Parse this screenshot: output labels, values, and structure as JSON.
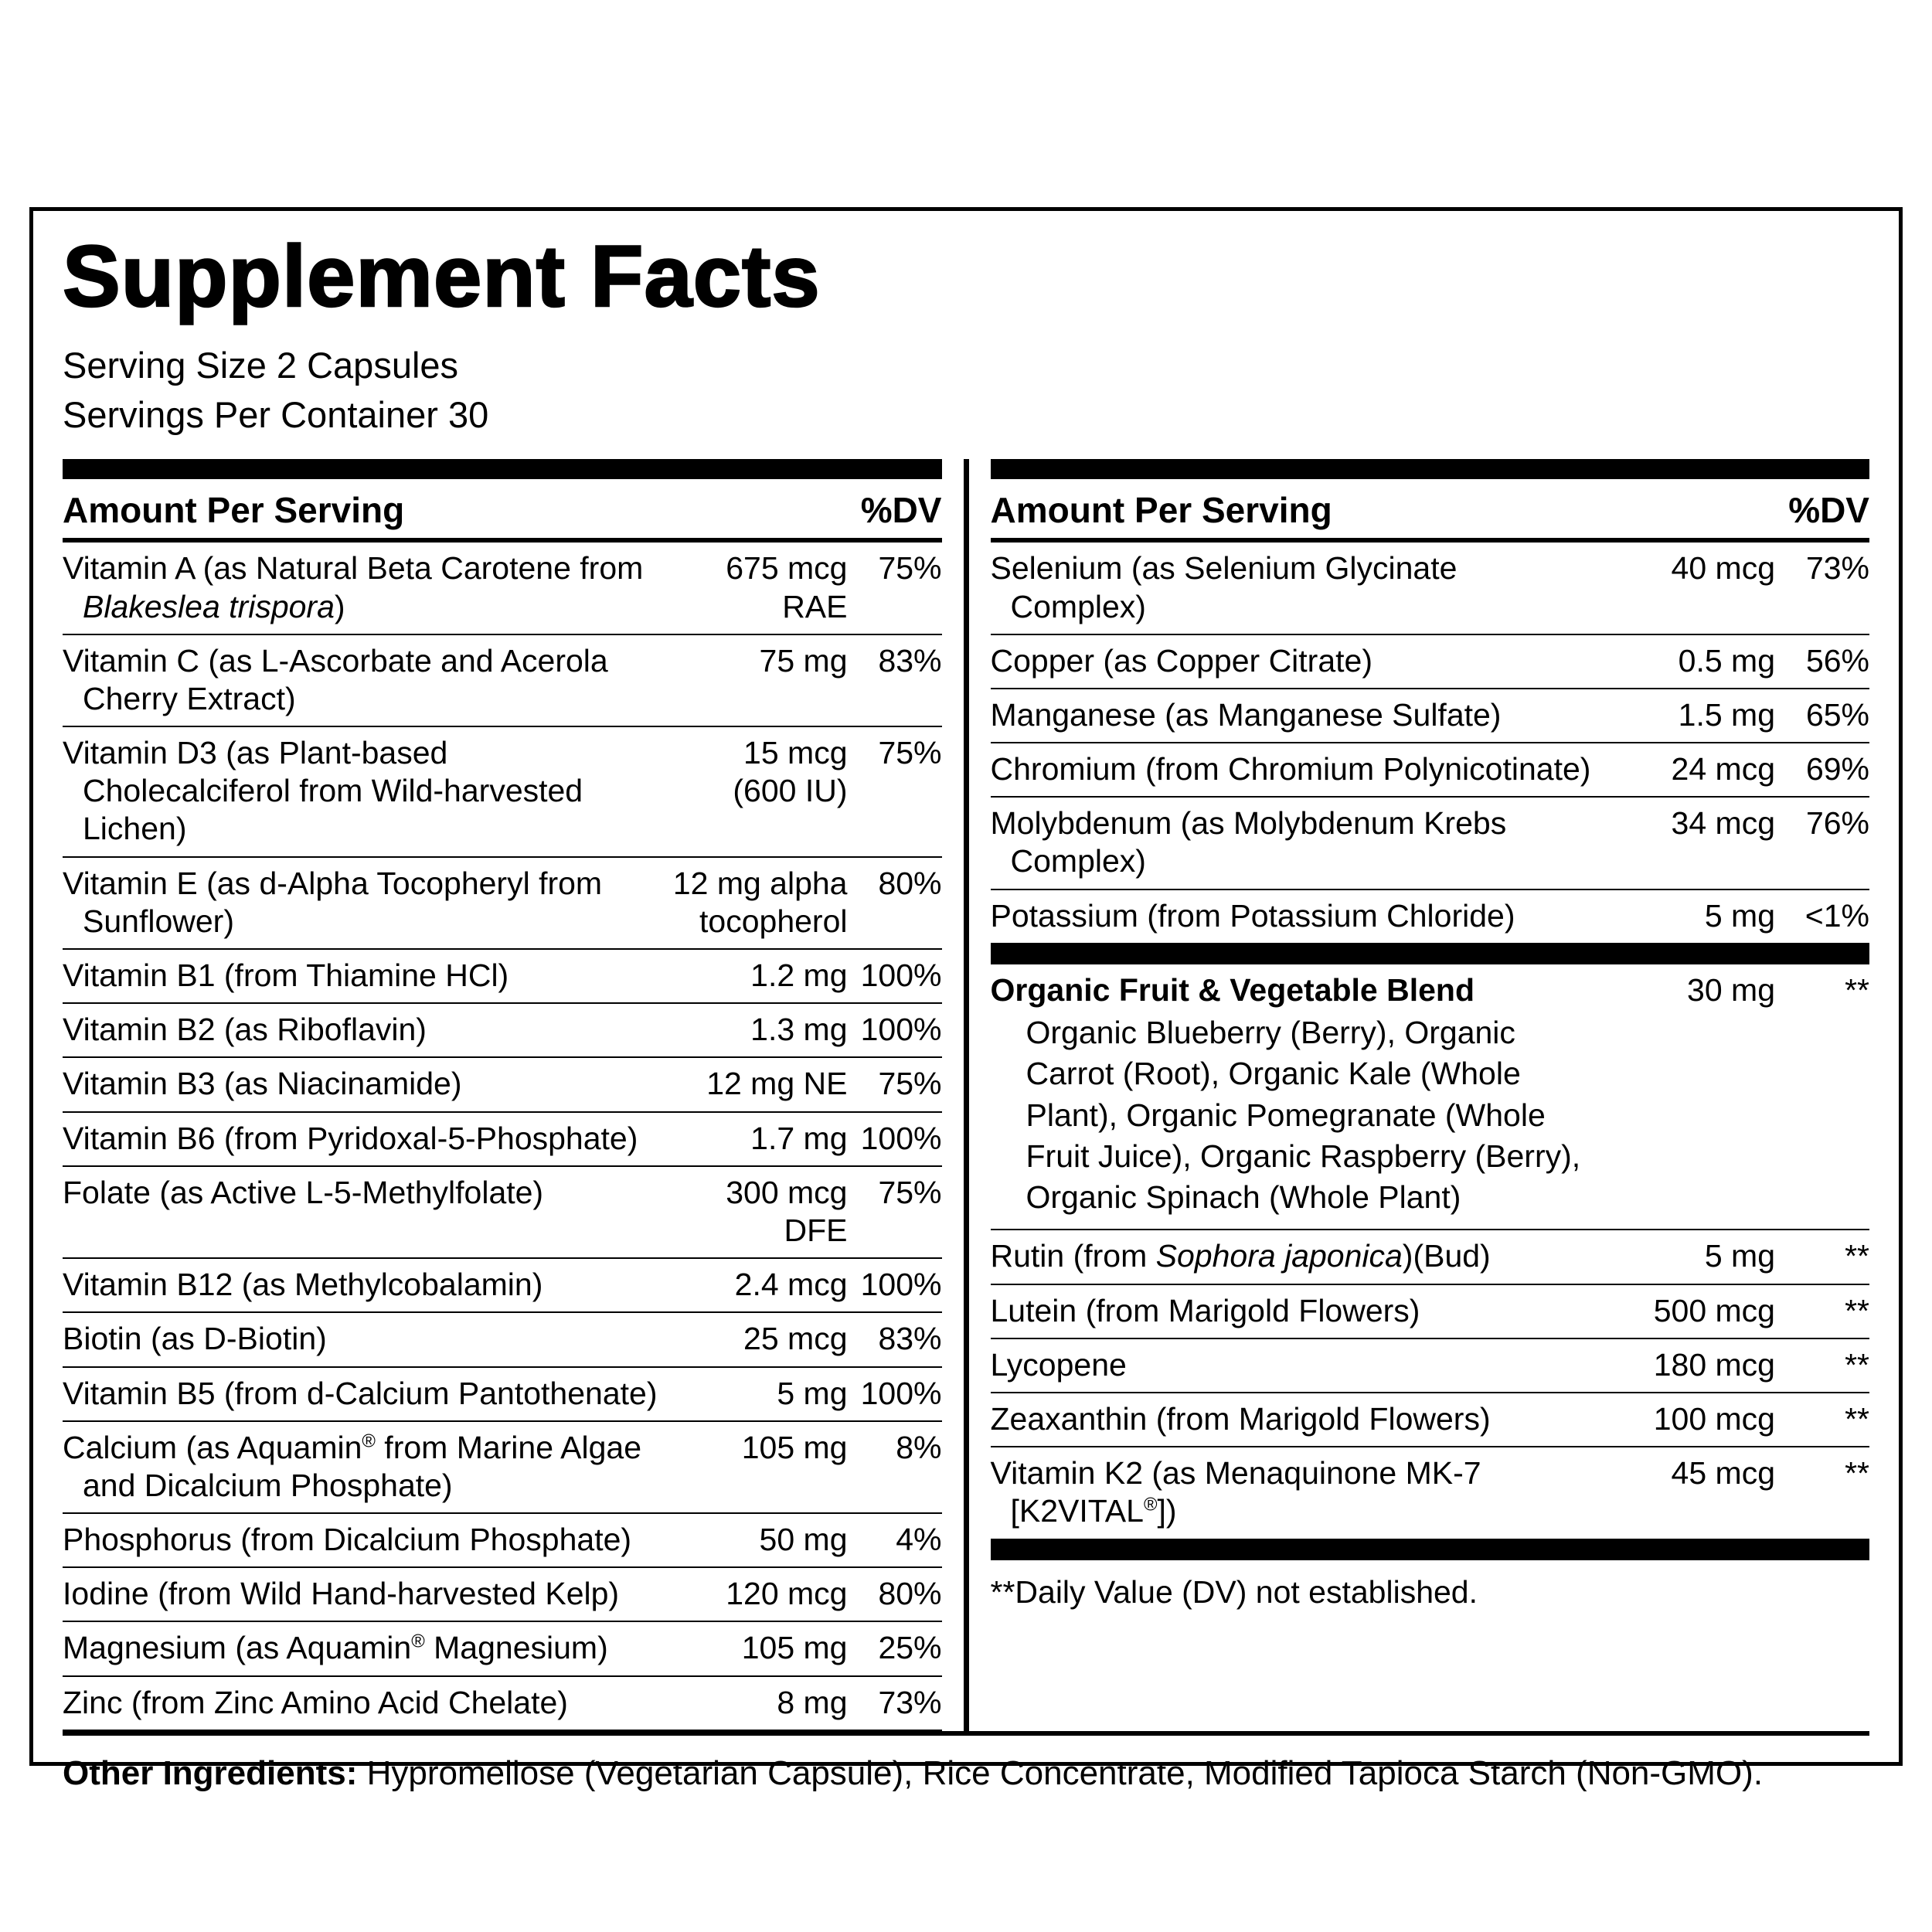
{
  "title": "Supplement Facts",
  "serving_size": "Serving Size 2 Capsules",
  "servings_per_container": "Servings Per Container 30",
  "column_header": {
    "amount": "Amount Per Serving",
    "dv": "%DV"
  },
  "left_column": {
    "rows": [
      {
        "name": "Vitamin A (as Natural Beta Carotene from |Blakeslea trispora|)",
        "amount": "675 mcg\nRAE",
        "dv": "75%"
      },
      {
        "name": "Vitamin C (as L-Ascorbate and Acerola Cherry Extract)",
        "amount": "75 mg",
        "dv": "83%"
      },
      {
        "name": "Vitamin D3 (as Plant-based Cholecalciferol from Wild-harvested Lichen)",
        "amount": "15 mcg\n(600 IU)",
        "dv": "75%"
      },
      {
        "name": "Vitamin E (as d-Alpha Tocopheryl from Sunflower)",
        "amount": "12 mg alpha\ntocopherol",
        "dv": "80%"
      },
      {
        "name": "Vitamin B1 (from Thiamine HCl)",
        "amount": "1.2 mg",
        "dv": "100%"
      },
      {
        "name": "Vitamin B2 (as Riboflavin)",
        "amount": "1.3 mg",
        "dv": "100%"
      },
      {
        "name": "Vitamin B3 (as Niacinamide)",
        "amount": "12 mg NE",
        "dv": "75%"
      },
      {
        "name": "Vitamin B6 (from Pyridoxal-5-Phosphate)",
        "amount": "1.7 mg",
        "dv": "100%"
      },
      {
        "name": "Folate (as Active L-5-Methylfolate)",
        "amount": "300 mcg\nDFE",
        "dv": "75%"
      },
      {
        "name": "Vitamin B12 (as Methylcobalamin)",
        "amount": "2.4 mcg",
        "dv": "100%"
      },
      {
        "name": "Biotin (as D-Biotin)",
        "amount": "25 mcg",
        "dv": "83%"
      },
      {
        "name": "Vitamin B5 (from d-Calcium Pantothenate)",
        "amount": "5 mg",
        "dv": "100%"
      },
      {
        "name": "Calcium (as Aquamin^®^ from Marine Algae and Dicalcium Phosphate)",
        "amount": "105 mg",
        "dv": "8%"
      },
      {
        "name": "Phosphorus (from Dicalcium Phosphate)",
        "amount": "50 mg",
        "dv": "4%"
      },
      {
        "name": "Iodine (from Wild Hand-harvested Kelp)",
        "amount": "120 mcg",
        "dv": "80%"
      },
      {
        "name": "Magnesium (as Aquamin^®^ Magnesium)",
        "amount": "105 mg",
        "dv": "25%"
      },
      {
        "name": "Zinc (from Zinc Amino Acid Chelate)",
        "amount": "8 mg",
        "dv": "73%"
      }
    ]
  },
  "right_column": {
    "rows": [
      {
        "name": "Selenium (as Selenium Glycinate Complex)",
        "amount": "40 mcg",
        "dv": "73%"
      },
      {
        "name": "Copper (as Copper Citrate)",
        "amount": "0.5 mg",
        "dv": "56%"
      },
      {
        "name": "Manganese (as Manganese Sulfate)",
        "amount": "1.5 mg",
        "dv": "65%"
      },
      {
        "name": "Chromium (from Chromium Polynicotinate)",
        "amount": "24 mcg",
        "dv": "69%"
      },
      {
        "name": "Molybdenum (as Molybdenum Krebs Complex)",
        "amount": "34 mcg",
        "dv": "76%"
      },
      {
        "name": "Potassium (from Potassium Chloride)",
        "amount": "5 mg",
        "dv": "<1%"
      },
      {
        "type": "bar"
      },
      {
        "name": "Organic Fruit & Vegetable Blend",
        "amount": "30 mg",
        "dv": "**",
        "bold": true,
        "noline": true
      },
      {
        "type": "note",
        "text": "Organic Blueberry (Berry), Organic Carrot (Root), Organic Kale (Whole Plant), Organic Pomegranate (Whole Fruit Juice), Organic Raspberry (Berry), Organic Spinach (Whole Plant)"
      },
      {
        "name": "Rutin (from |Sophora japonica|)(Bud)",
        "amount": "5 mg",
        "dv": "**"
      },
      {
        "name": "Lutein (from Marigold Flowers)",
        "amount": "500 mcg",
        "dv": "**"
      },
      {
        "name": "Lycopene",
        "amount": "180 mcg",
        "dv": "**"
      },
      {
        "name": "Zeaxanthin (from Marigold Flowers)",
        "amount": "100 mcg",
        "dv": "**"
      },
      {
        "name": "Vitamin K2 (as Menaquinone MK-7 [K2VITAL^®^])",
        "amount": "45 mcg",
        "dv": "**"
      },
      {
        "type": "bar"
      }
    ],
    "footnote": "**Daily Value (DV) not established."
  },
  "other_ingredients": {
    "label": "Other Ingredients:",
    "text": "Hypromellose (Vegetarian Capsule), Rice Concentrate, Modified Tapioca Starch (Non-GMO)."
  },
  "colors": {
    "ink": "#000000",
    "background": "#ffffff"
  }
}
